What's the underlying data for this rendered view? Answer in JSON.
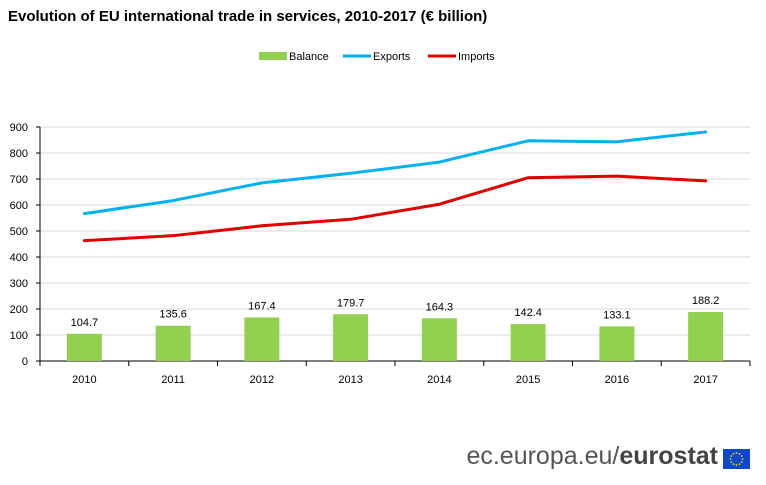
{
  "title": "Evolution of EU international trade in services, 2010-2017 (€ billion)",
  "footer": {
    "site": "ec.europa.eu/",
    "brand": "eurostat"
  },
  "colors": {
    "balance": "#92d050",
    "exports": "#00b0f0",
    "imports": "#e00000",
    "grid": "#d9d9d9",
    "axis": "#000000"
  },
  "chart_data": {
    "type": "bar",
    "title": "Evolution of EU international trade in services, 2010-2017 (€ billion)",
    "categories": [
      "2010",
      "2011",
      "2012",
      "2013",
      "2014",
      "2015",
      "2016",
      "2017"
    ],
    "ylim": [
      0,
      900
    ],
    "yticks": [
      0,
      100,
      200,
      300,
      400,
      500,
      600,
      700,
      800,
      900
    ],
    "grid": true,
    "legend": "top-center",
    "series": [
      {
        "name": "Balance",
        "type": "bar",
        "values": [
          104.7,
          135.6,
          167.4,
          179.7,
          164.3,
          142.4,
          133.1,
          188.2
        ],
        "labels": [
          "104.7",
          "135.6",
          "167.4",
          "179.7",
          "164.3",
          "142.4",
          "133.1",
          "188.2"
        ]
      },
      {
        "name": "Exports",
        "type": "line",
        "values": [
          567,
          617,
          685,
          722,
          765,
          847,
          843,
          881
        ]
      },
      {
        "name": "Imports",
        "type": "line",
        "values": [
          463,
          482,
          520,
          545,
          603,
          705,
          711,
          693
        ]
      }
    ]
  }
}
